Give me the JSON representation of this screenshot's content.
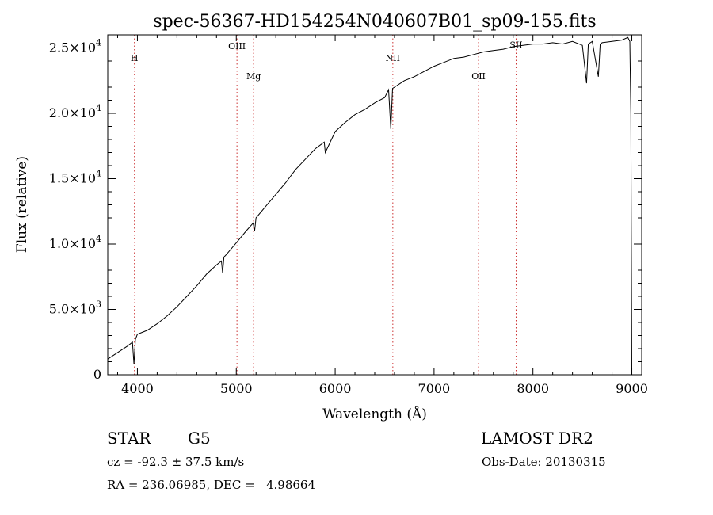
{
  "chart_data": {
    "type": "line",
    "title": "spec-56367-HD154254N040607B01_sp09-155.fits",
    "xlabel": "Wavelength (Å)",
    "ylabel": "Flux (relative)",
    "xlim": [
      3700,
      9100
    ],
    "ylim": [
      0,
      26000
    ],
    "x_ticks": [
      4000,
      5000,
      6000,
      7000,
      8000,
      9000
    ],
    "x_tick_labels": [
      "4000",
      "5000",
      "6000",
      "7000",
      "8000",
      "9000"
    ],
    "y_ticks": [
      0,
      5000,
      10000,
      15000,
      20000,
      25000
    ],
    "y_tick_labels": [
      {
        "mantissa": "0",
        "exp": ""
      },
      {
        "mantissa": "5.0×10",
        "exp": "3"
      },
      {
        "mantissa": "1.0×10",
        "exp": "4"
      },
      {
        "mantissa": "1.5×10",
        "exp": "4"
      },
      {
        "mantissa": "2.0×10",
        "exp": "4"
      },
      {
        "mantissa": "2.5×10",
        "exp": "4"
      }
    ],
    "grid": false,
    "legend": "none",
    "line_color": "#000000",
    "marker_color": "#cc3333",
    "series": [
      {
        "x": [
          3700,
          3800,
          3900,
          3950,
          3965,
          3980,
          4000,
          4100,
          4200,
          4300,
          4400,
          4500,
          4600,
          4700,
          4800,
          4850,
          4862,
          4875,
          4900,
          5000,
          5100,
          5170,
          5185,
          5200,
          5300,
          5400,
          5500,
          5600,
          5700,
          5800,
          5890,
          5900,
          6000,
          6100,
          6200,
          6300,
          6400,
          6500,
          6540,
          6563,
          6580,
          6600,
          6700,
          6800,
          6900,
          7000,
          7100,
          7200,
          7300,
          7400,
          7500,
          7600,
          7700,
          7800,
          7900,
          8000,
          8100,
          8200,
          8300,
          8400,
          8500,
          8542,
          8560,
          8600,
          8662,
          8680,
          8700,
          8800,
          8900,
          8960,
          8980,
          8990,
          9000
        ],
        "y": [
          1200,
          1700,
          2200,
          2500,
          800,
          2700,
          3100,
          3400,
          3900,
          4500,
          5200,
          6000,
          6800,
          7700,
          8400,
          8700,
          7800,
          9000,
          9200,
          10100,
          11000,
          11600,
          11000,
          12000,
          12900,
          13800,
          14700,
          15700,
          16500,
          17300,
          17800,
          17000,
          18600,
          19300,
          19900,
          20300,
          20800,
          21200,
          21800,
          18800,
          21900,
          22000,
          22500,
          22800,
          23200,
          23600,
          23900,
          24200,
          24300,
          24500,
          24700,
          24800,
          24900,
          25100,
          25200,
          25300,
          25300,
          25400,
          25300,
          25500,
          25200,
          22300,
          25300,
          25500,
          22800,
          25300,
          25400,
          25500,
          25600,
          25800,
          25500,
          20000,
          0
        ]
      }
    ],
    "annotations": [
      {
        "text": "H",
        "x": 3970,
        "label_y": 24000
      },
      {
        "text": "OIII",
        "x": 5007,
        "label_y": 24900
      },
      {
        "text": "Mg",
        "x": 5175,
        "label_y": 22600
      },
      {
        "text": "NII",
        "x": 6583,
        "label_y": 24000
      },
      {
        "text": "OII",
        "x": 7450,
        "label_y": 22600
      },
      {
        "text": "SII",
        "x": 7830,
        "label_y": 25000
      }
    ]
  },
  "info": {
    "class_label": "STAR",
    "subclass_label": "G5",
    "survey_label": "LAMOST DR2",
    "cz_text": "cz = -92.3 ± 37.5 km/s",
    "obs_date_text": "Obs-Date: 20130315",
    "radec_text": "RA = 236.06985, DEC =   4.98664"
  }
}
